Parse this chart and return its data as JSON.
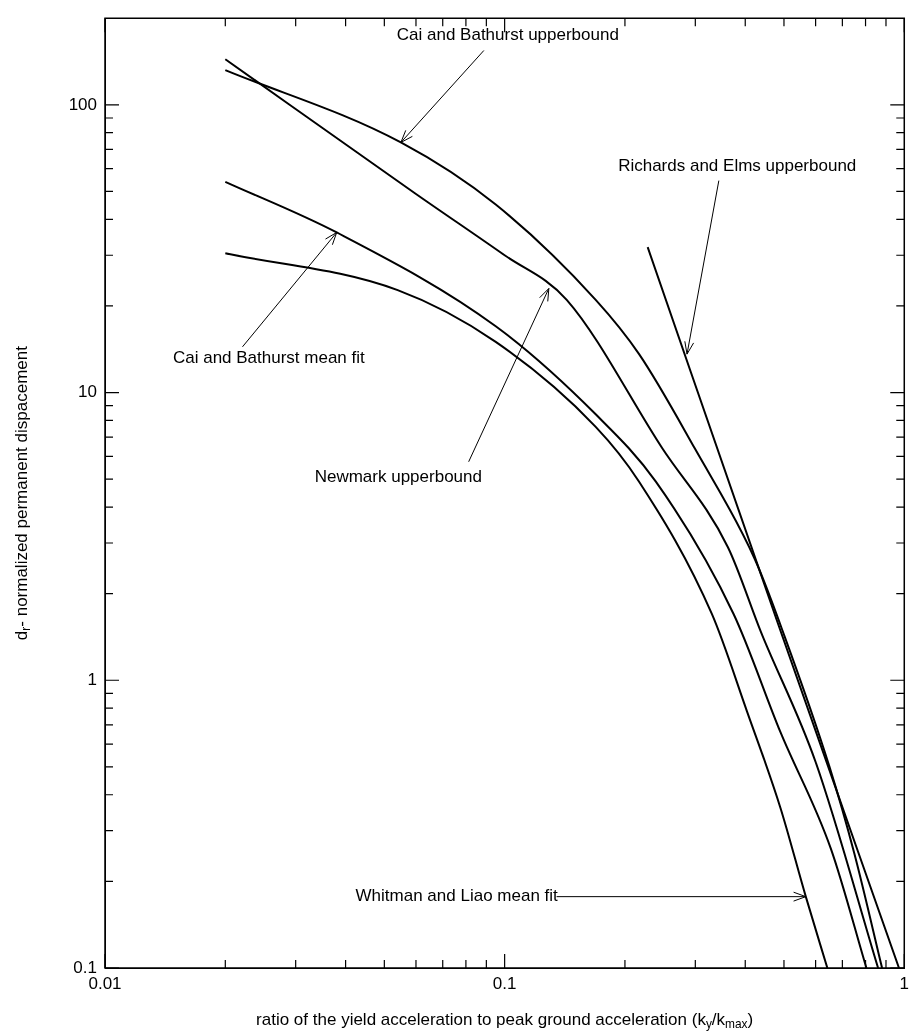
{
  "chart_data": {
    "type": "line",
    "xlabel": "ratio of the yield acceleration to peak ground acceleration (k$_{y}$/k$_{max}$)",
    "ylabel": "d$_{r}$- normalized permanent dispacement",
    "log": "xy",
    "grid": false,
    "legend": false,
    "marker": "none",
    "line_style": "solid",
    "xlim": [
      0.01,
      1
    ],
    "ylim": [
      0.1,
      200
    ],
    "xticks": [
      0.01,
      {
        "value": 0.02,
        "label": null
      },
      {
        "value": 0.03,
        "label": null
      },
      {
        "value": 0.04,
        "label": null
      },
      {
        "value": 0.05,
        "label": null
      },
      {
        "value": 0.06,
        "label": null
      },
      {
        "value": 0.07,
        "label": null
      },
      {
        "value": 0.08,
        "label": null
      },
      {
        "value": 0.09,
        "label": null
      },
      0.1,
      {
        "value": 0.2,
        "label": null
      },
      {
        "value": 0.3,
        "label": null
      },
      {
        "value": 0.4,
        "label": null
      },
      {
        "value": 0.5,
        "label": null
      },
      {
        "value": 0.6,
        "label": null
      },
      {
        "value": 0.7,
        "label": null
      },
      {
        "value": 0.8,
        "label": null
      },
      {
        "value": 0.9,
        "label": null
      },
      1
    ],
    "yticks": [
      0.1,
      {
        "value": 0.2,
        "label": null
      },
      {
        "value": 0.3,
        "label": null
      },
      {
        "value": 0.4,
        "label": null
      },
      {
        "value": 0.5,
        "label": null
      },
      {
        "value": 0.6,
        "label": null
      },
      {
        "value": 0.7,
        "label": null
      },
      {
        "value": 0.8,
        "label": null
      },
      {
        "value": 0.9,
        "label": null
      },
      1,
      {
        "value": 2,
        "label": null
      },
      {
        "value": 3,
        "label": null
      },
      {
        "value": 4,
        "label": null
      },
      {
        "value": 5,
        "label": null
      },
      {
        "value": 6,
        "label": null
      },
      {
        "value": 7,
        "label": null
      },
      {
        "value": 8,
        "label": null
      },
      {
        "value": 9,
        "label": null
      },
      10,
      {
        "value": 20,
        "label": null
      },
      {
        "value": 30,
        "label": null
      },
      {
        "value": 40,
        "label": null
      },
      {
        "value": 50,
        "label": null
      },
      {
        "value": 60,
        "label": null
      },
      {
        "value": 70,
        "label": null
      },
      {
        "value": 80,
        "label": null
      },
      {
        "value": 90,
        "label": null
      },
      100
    ],
    "series": [
      {
        "color": "#000000",
        "x": [
          0.02,
          0.055,
          0.095,
          0.169,
          0.217,
          0.299,
          0.422,
          0.501,
          0.65,
          0.75,
          0.88
        ],
        "values": [
          132,
          74,
          45,
          21,
          13.6,
          6.4,
          2.65,
          1.43,
          0.5,
          0.25,
          0.1
        ]
      },
      {
        "color": "#000000",
        "x": [
          0.02,
          0.06,
          0.1,
          0.143,
          0.248,
          0.362,
          0.438,
          0.6,
          0.86
        ],
        "values": [
          144,
          49,
          30,
          21,
          6.4,
          2.9,
          1.47,
          0.52,
          0.1
        ]
      },
      {
        "color": "#000000",
        "x": [
          0.228,
          0.481,
          0.97
        ],
        "values": [
          32,
          1.6,
          0.1
        ]
      },
      {
        "color": "#000000",
        "x": [
          0.02,
          0.038,
          0.095,
          0.169,
          0.239,
          0.374,
          0.49,
          0.655,
          0.804
        ],
        "values": [
          54,
          36,
          17,
          8.4,
          4.9,
          1.7,
          0.66,
          0.26,
          0.1
        ]
      },
      {
        "color": "#000000",
        "x": [
          0.02,
          0.054,
          0.095,
          0.169,
          0.217,
          0.33,
          0.404,
          0.49,
          0.567,
          0.642
        ],
        "values": [
          30.5,
          22.7,
          15,
          7.6,
          4.9,
          1.7,
          0.78,
          0.36,
          0.177,
          0.1
        ]
      }
    ],
    "annotations": [
      {
        "text": "Cai and Bathurst upperbound",
        "x": 0.055,
        "y": 74
      },
      {
        "text": "Richards and Elms upperbound",
        "x": 0.286,
        "y": 13.6
      },
      {
        "text": "Cai and Bathurst mean fit",
        "x": 0.038,
        "y": 36
      },
      {
        "text": "Newmark upperbound",
        "x": 0.129,
        "y": 23
      },
      {
        "text": "Whitman and Liao mean fit",
        "x": 0.567,
        "y": 0.177
      }
    ]
  }
}
